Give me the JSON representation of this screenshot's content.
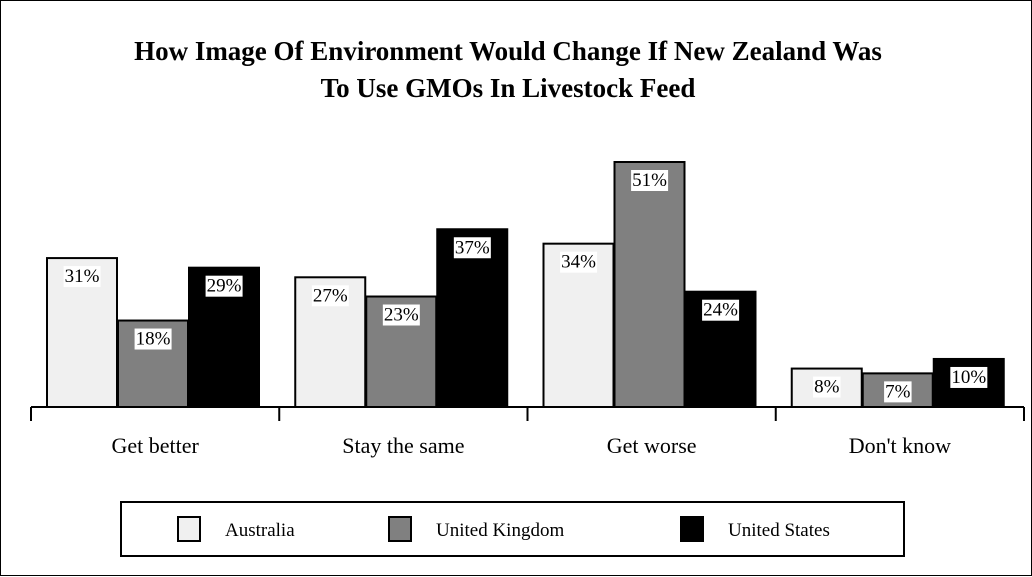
{
  "chart_data": {
    "type": "bar",
    "title": "How Image Of Environment Would Change If New Zealand Was To Use GMOs In Livestock Feed",
    "title_lines": [
      "How Image Of Environment Would Change If New Zealand Was",
      "To Use GMOs In Livestock Feed"
    ],
    "categories": [
      "Get better",
      "Stay the same",
      "Get worse",
      "Don't know"
    ],
    "series": [
      {
        "name": "Australia",
        "color": "#f0f0f0",
        "values": [
          31,
          27,
          34,
          8
        ],
        "labels": [
          "31%",
          "27%",
          "34%",
          "8%"
        ]
      },
      {
        "name": "United Kingdom",
        "color": "#808080",
        "values": [
          18,
          23,
          51,
          7
        ],
        "labels": [
          "18%",
          "23%",
          "51%",
          "7%"
        ]
      },
      {
        "name": "United States",
        "color": "#000000",
        "values": [
          29,
          37,
          24,
          10
        ],
        "labels": [
          "29%",
          "37%",
          "24%",
          "10%"
        ]
      }
    ],
    "ylim": [
      0,
      52
    ],
    "grid": false,
    "legend_position": "bottom"
  }
}
